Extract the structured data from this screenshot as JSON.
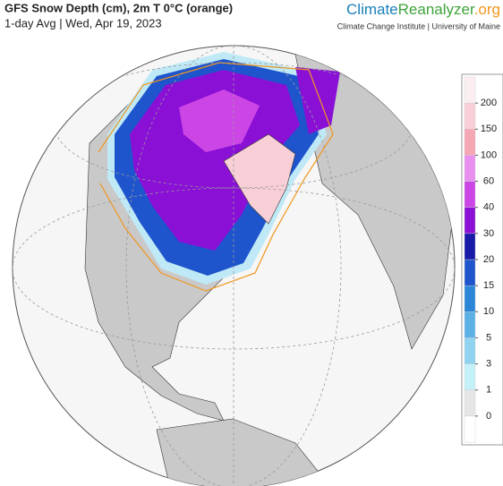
{
  "header": {
    "title": "GFS Snow Depth (cm), 2m T 0°C (orange)",
    "subtitle": "1-day Avg | Wed, Apr 19, 2023"
  },
  "brand": {
    "climate": "Climate",
    "reanalyzer": "Reanalyzer",
    "org": ".org",
    "credit": "Climate Change Institute | University of Maine"
  },
  "colorbar": {
    "levels": [
      0,
      1,
      3,
      5,
      10,
      15,
      20,
      30,
      40,
      60,
      100,
      150,
      200
    ],
    "colors": [
      "#ffffff",
      "#e6e6e6",
      "#c4f1f8",
      "#8fd3f1",
      "#5cb0e6",
      "#2c86d8",
      "#1f55cc",
      "#1a1aa8",
      "#8a10d6",
      "#cc46e6",
      "#e88ff0",
      "#f5a8b4",
      "#f8cfd6",
      "#fbeef0"
    ]
  }
}
